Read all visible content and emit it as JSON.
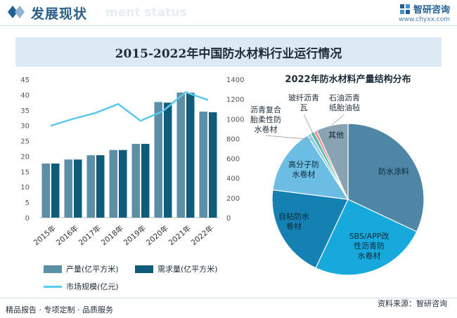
{
  "header": {
    "title": "发展现状",
    "subtitle_ghost": "ment status",
    "brand_name": "智研咨询",
    "brand_url": "www.chyxx.com"
  },
  "main_title": "2015-2022年中国防水材料行业运行情况",
  "footer": {
    "left": "精品报告 · 专项定制 · 品质服务",
    "source": "资料来源：智研咨询"
  },
  "colors": {
    "brand": "#1f5f95",
    "production": "#5b8fa8",
    "demand": "#0f5c7a",
    "market": "#5bc8ee"
  },
  "chart_data": [
    {
      "type": "bar",
      "categories": [
        "2015年",
        "2016年",
        "2017年",
        "2018年",
        "2019年",
        "2020年",
        "2021年",
        "2022年"
      ],
      "series": [
        {
          "name": "产量(亿平方米)",
          "axis": "left",
          "values": [
            17.6,
            18.9,
            20.3,
            22.0,
            24.0,
            37.6,
            40.7,
            34.5
          ]
        },
        {
          "name": "需求量(亿平方米)",
          "axis": "left",
          "values": [
            17.6,
            18.9,
            20.3,
            22.0,
            24.0,
            37.4,
            40.6,
            34.3
          ]
        },
        {
          "name": "市场规模(亿元)",
          "type": "line",
          "axis": "right",
          "values": [
            930,
            1000,
            1060,
            1150,
            980,
            1080,
            1270,
            1190
          ]
        }
      ],
      "ylim_left": [
        0,
        45
      ],
      "yticks_left": [
        "0",
        "5",
        "10",
        "15",
        "20",
        "25",
        "30",
        "35",
        "40",
        "45"
      ],
      "ylim_right": [
        0,
        1400
      ],
      "yticks_right": [
        "0",
        "200",
        "400",
        "600",
        "800",
        "1000",
        "1200",
        "1400"
      ],
      "grid": false,
      "legend": "bottom-left"
    },
    {
      "type": "pie",
      "title": "2022年防水材料产量结构分布",
      "slices": [
        {
          "label": "防水涂料",
          "value": 32.0,
          "color": "#4f86a6"
        },
        {
          "label": "SBS/APP改性沥青防水卷材",
          "label_lines": [
            "SBS/APP改",
            "性沥青防",
            "水卷材"
          ],
          "value": 25.0,
          "color": "#17a8dc"
        },
        {
          "label": "自粘防水卷材",
          "label_lines": [
            "自粘防水",
            "卷材"
          ],
          "value": 20.0,
          "color": "#1581b3"
        },
        {
          "label": "高分子防水卷材",
          "label_lines": [
            "高分子防",
            "水卷材"
          ],
          "value": 14.0,
          "color": "#6cbde3"
        },
        {
          "label": "沥青复合胎柔性防水卷材",
          "label_lines": [
            "沥青复合",
            "胎柔性防",
            "水卷材"
          ],
          "value": 0.8,
          "color": "#8fcfe8"
        },
        {
          "label": "玻纤沥青瓦",
          "label_lines": [
            "玻纤沥青",
            "瓦"
          ],
          "value": 0.8,
          "color": "#4fb9a2"
        },
        {
          "label": "石油沥青纸胎油毡",
          "label_lines": [
            "石油沥青",
            "纸胎油毡"
          ],
          "value": 0.6,
          "color": "#e9877a"
        },
        {
          "label": "其他",
          "value": 6.8,
          "color": "#8aa3b3"
        }
      ]
    }
  ]
}
